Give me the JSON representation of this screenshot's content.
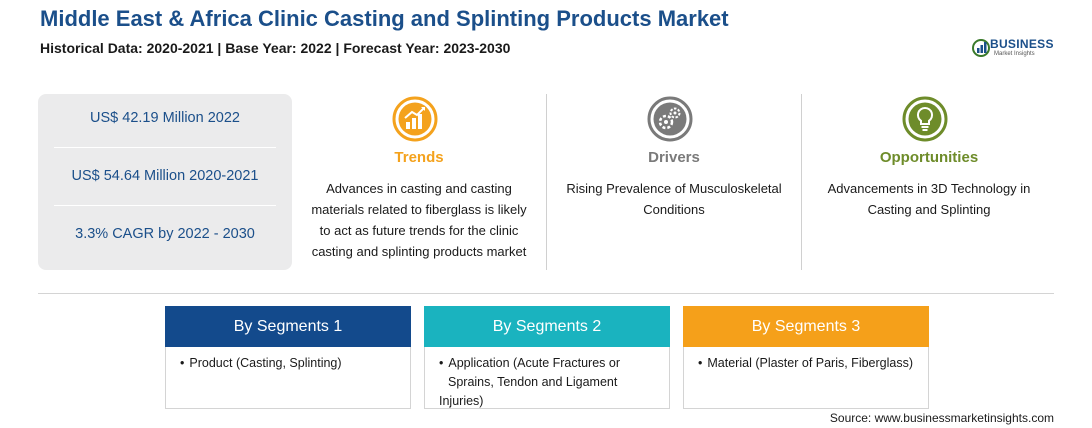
{
  "header": {
    "title": "Middle East & Africa Clinic Casting and Splinting Products Market",
    "subtitle": "Historical Data: 2020-2021 | Base Year: 2022 | Forecast Year: 2023-2030"
  },
  "logo": {
    "name": "BUSINESS",
    "tagline": "Market Insights"
  },
  "stats": [
    "US$ 42.19 Million 2022",
    "US$ 54.64 Million 2020-2021",
    "3.3% CAGR by 2022 - 2030"
  ],
  "columns": [
    {
      "icon": "growth-chart-icon",
      "color": "#f4a21d",
      "title": "Trends",
      "lines": [
        "Advances in casting and casting",
        "materials related to fiberglass is likely",
        "to act as future trends for the clinic",
        "casting and splinting products market"
      ]
    },
    {
      "icon": "gears-icon",
      "color": "#7a7a7a",
      "title": "Drivers",
      "lines": [
        "Rising Prevalence of Musculoskeletal",
        "Conditions"
      ]
    },
    {
      "icon": "lightbulb-icon",
      "color": "#6e8c2a",
      "title": "Opportunities",
      "lines": [
        "Advancements in 3D Technology in",
        "Casting and Splinting"
      ]
    }
  ],
  "segments": [
    {
      "title": "By Segments 1",
      "color": "#134a8c",
      "items": [
        [
          "Product (Casting, Splinting)"
        ]
      ]
    },
    {
      "title": "By Segments 2",
      "color": "#1ab3bf",
      "items": [
        [
          "Application (Acute Fractures or",
          "Sprains, Tendon and Ligament Injuries)"
        ]
      ]
    },
    {
      "title": "By Segments 3",
      "color": "#f5a01a",
      "items": [
        [
          "Material (Plaster of Paris, Fiberglass)"
        ]
      ]
    }
  ],
  "source": "Source: www.businessmarketinsights.com"
}
